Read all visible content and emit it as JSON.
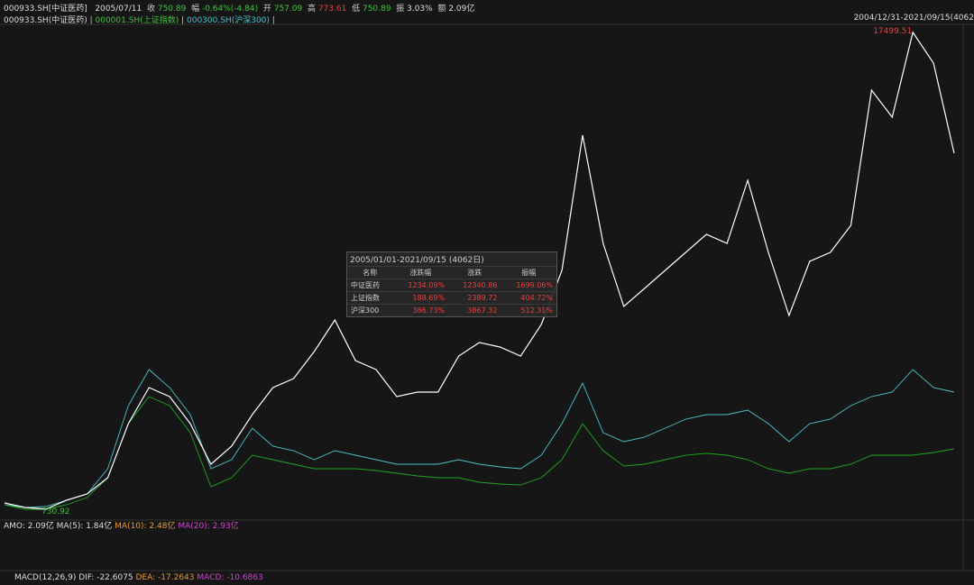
{
  "header": {
    "code": "000933.SH[中证医药]",
    "date": "2005/07/11",
    "close_label": "收",
    "close": "750.89",
    "change_label": "幅",
    "change": "-0.64%(-4.84)",
    "open_label": "开",
    "open": "757.09",
    "high_label": "高",
    "high": "773.61",
    "low_label": "低",
    "low": "750.89",
    "amp_label": "振",
    "amp": "3.03%",
    "amount_label": "额",
    "amount": "2.09亿"
  },
  "range_label": "2004/12/31-2021/09/15(4062",
  "chart_data": {
    "type": "line",
    "categories": [
      null,
      null,
      null,
      null,
      null,
      null,
      null,
      null,
      null,
      null,
      null,
      null,
      null,
      null,
      null,
      null,
      null,
      null,
      null,
      null,
      null,
      null,
      null,
      null,
      null,
      null,
      null,
      null,
      null,
      null,
      null,
      null,
      null,
      null,
      null,
      null,
      null,
      null,
      null,
      null,
      null,
      null,
      null,
      null,
      null,
      null,
      null
    ],
    "series": [
      {
        "name": "000933.SH(中证医药)",
        "color": "#ffffff",
        "values": [
          939,
          781,
          720,
          1034,
          1256,
          1827,
          3731,
          4999,
          4682,
          3731,
          2303,
          2938,
          4048,
          4999,
          5317,
          6268,
          7378,
          5951,
          5634,
          4682,
          4841,
          4841,
          6110,
          6585,
          6427,
          6110,
          7220,
          9123,
          13881,
          10075,
          7854,
          8489,
          9123,
          9757,
          10392,
          10075,
          12295,
          9757,
          7537,
          9440,
          9757,
          10709,
          15467,
          14515,
          17499.51,
          16419,
          13247
        ]
      },
      {
        "name": "000001.SH(上证指数)",
        "color": "#1fa51f",
        "values": [
          876,
          717,
          717,
          876,
          1130,
          1827,
          3731,
          4682,
          4365,
          3413,
          1510,
          1827,
          2620,
          2462,
          2303,
          2145,
          2145,
          2145,
          2081,
          1986,
          1891,
          1827,
          1827,
          1669,
          1605,
          1574,
          1827,
          2462,
          3731,
          2779,
          2240,
          2303,
          2462,
          2620,
          2684,
          2620,
          2462,
          2145,
          1986,
          2145,
          2145,
          2303,
          2620,
          2620,
          2620,
          2716,
          2842
        ]
      },
      {
        "name": "000300.SH(沪深300)",
        "color": "#49c3c8",
        "values": [
          876,
          781,
          812,
          1034,
          1256,
          2145,
          4365,
          5634,
          4999,
          4048,
          2145,
          2462,
          3572,
          2938,
          2779,
          2462,
          2779,
          2620,
          2462,
          2303,
          2303,
          2303,
          2462,
          2303,
          2208,
          2145,
          2620,
          3731,
          5158,
          3413,
          3096,
          3255,
          3572,
          3889,
          4048,
          4048,
          4206,
          3731,
          3096,
          3731,
          3889,
          4365,
          4682,
          4841,
          5634,
          4999,
          4841
        ]
      }
    ],
    "ylim": [
      400,
      17750
    ],
    "max_label": "17499.51",
    "min_label": "730.92"
  },
  "stats_table": {
    "title": "2005/01/01-2021/09/15 (4062日)",
    "headers": [
      "名称",
      "涨跌幅",
      "涨跌",
      "振幅"
    ],
    "rows": [
      [
        "中证医药",
        "1234.09%",
        "12340.86",
        "1699.06%"
      ],
      [
        "上证指数",
        "188.69%",
        "2389.72",
        "404.72%"
      ],
      [
        "沪深300",
        "386.73%",
        "3867.32",
        "512.31%"
      ]
    ]
  },
  "amo": {
    "amo": "AMO: 2.09亿",
    "ma5": "MA(5): 1.84亿",
    "ma10": "MA(10): 2.48亿",
    "ma20": "MA(20): 2.93亿"
  },
  "macd": {
    "name": "MACD(12,26,9)",
    "dif": "DIF: -22.6075",
    "dea": "DEA: -17.2643",
    "macd": "MACD: -10.6863"
  }
}
